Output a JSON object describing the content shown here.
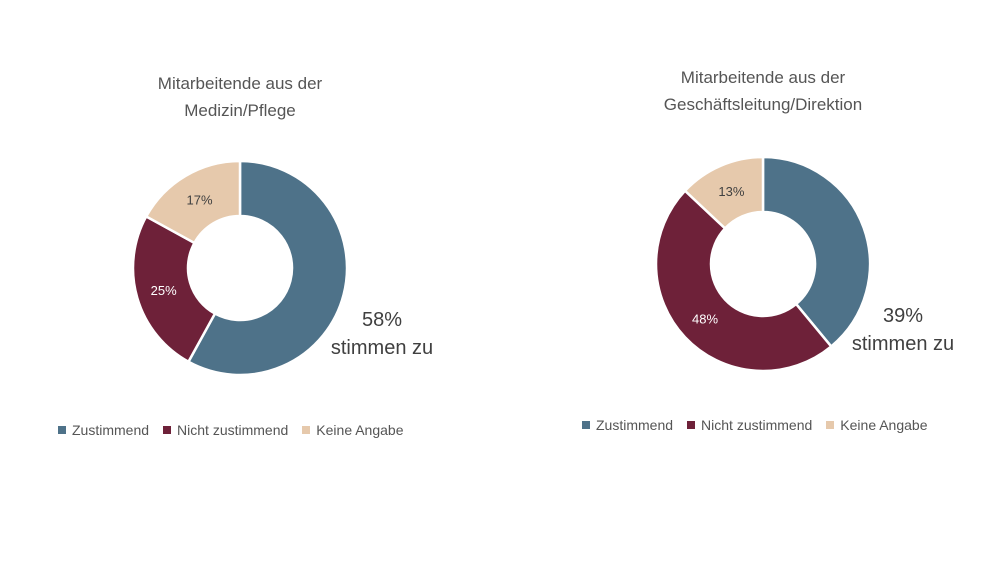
{
  "colors": {
    "zustimmend": "#4e7289",
    "nicht": "#6e2139",
    "keine": "#e6c9ac"
  },
  "chart_data": [
    {
      "type": "pie",
      "title_lines": [
        "Mitarbeitende aus der",
        "Medizin/Pflege"
      ],
      "slices": [
        {
          "name": "Zustimmend",
          "value": 58,
          "label": ""
        },
        {
          "name": "Nicht zustimmend",
          "value": 25,
          "label": "25%"
        },
        {
          "name": "Keine Angabe",
          "value": 17,
          "label": "17%"
        }
      ],
      "callout": {
        "value": "58%",
        "text": "stimmen zu"
      },
      "legend": [
        "Zustimmend",
        "Nicht zustimmend",
        "Keine Angabe"
      ]
    },
    {
      "type": "pie",
      "title_lines": [
        "Mitarbeitende aus der",
        "Geschäftsleitung/Direktion"
      ],
      "slices": [
        {
          "name": "Zustimmend",
          "value": 39,
          "label": ""
        },
        {
          "name": "Nicht zustimmend",
          "value": 48,
          "label": "48%"
        },
        {
          "name": "Keine Angabe",
          "value": 13,
          "label": "13%"
        }
      ],
      "callout": {
        "value": "39%",
        "text": "stimmen zu"
      },
      "legend": [
        "Zustimmend",
        "Nicht zustimmend",
        "Keine Angabe"
      ]
    }
  ]
}
